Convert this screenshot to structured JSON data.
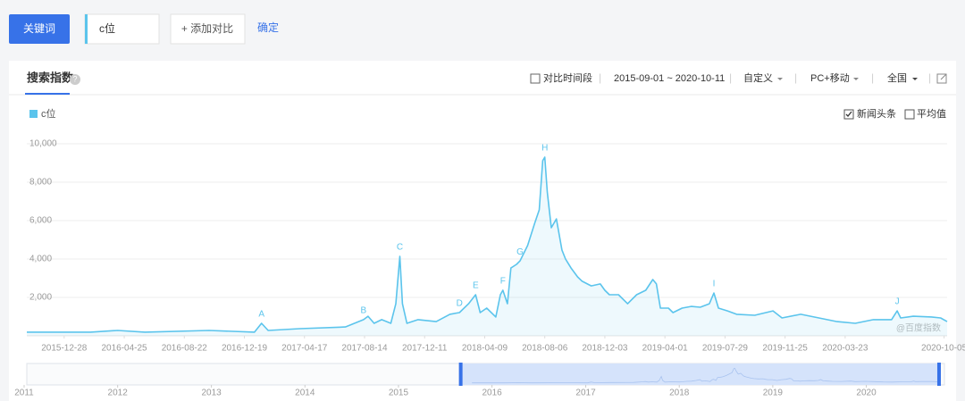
{
  "toolbar": {
    "keyword_button": "关键词",
    "keyword": "c位",
    "add_compare": "+ 添加对比",
    "confirm": "确定"
  },
  "header": {
    "title": "搜索指数",
    "compare_period": "对比时间段",
    "date_range": "2015-09-01 ~ 2020-10-11",
    "custom": "自定义",
    "device": "PC+移动",
    "region": "全国",
    "news": "新闻头条",
    "average": "平均值"
  },
  "chart_data": {
    "type": "line",
    "grid": true,
    "watermark": "@百度指数",
    "x": [
      "2015-10-15",
      "2016-02-18",
      "2016-04-12",
      "2016-06-05",
      "2016-10-10",
      "2017-01-08",
      "2017-01-22",
      "2017-02-04",
      "2017-04-08",
      "2017-07-07",
      "2017-08-12",
      "2017-08-21",
      "2017-09-02",
      "2017-09-17",
      "2017-10-05",
      "2017-10-15",
      "2017-10-23",
      "2017-10-28",
      "2017-11-06",
      "2017-11-28",
      "2018-01-03",
      "2018-01-30",
      "2018-02-18",
      "2018-03-08",
      "2018-03-22",
      "2018-03-31",
      "2018-04-13",
      "2018-05-01",
      "2018-05-10",
      "2018-05-15",
      "2018-05-24",
      "2018-05-31",
      "2018-06-11",
      "2018-06-18",
      "2018-07-03",
      "2018-07-17",
      "2018-07-26",
      "2018-08-02",
      "2018-08-06",
      "2018-08-11",
      "2018-08-19",
      "2018-08-29",
      "2018-09-09",
      "2018-09-16",
      "2018-09-27",
      "2018-10-10",
      "2018-10-19",
      "2018-11-06",
      "2018-11-24",
      "2018-12-03",
      "2018-12-12",
      "2018-12-30",
      "2019-01-17",
      "2019-02-04",
      "2019-02-22",
      "2019-03-08",
      "2019-03-15",
      "2019-03-23",
      "2019-04-08",
      "2019-04-17",
      "2019-05-05",
      "2019-05-23",
      "2019-06-10",
      "2019-06-28",
      "2019-07-07",
      "2019-07-16",
      "2019-08-03",
      "2019-08-21",
      "2019-09-26",
      "2019-11-01",
      "2019-11-19",
      "2019-12-26",
      "2020-01-31",
      "2020-03-07",
      "2020-04-12",
      "2020-05-18",
      "2020-06-23",
      "2020-07-04",
      "2020-07-11",
      "2020-08-05",
      "2020-09-10",
      "2020-09-28",
      "2020-10-11"
    ],
    "series": [
      {
        "name": "c位",
        "color": "#5bc4ec",
        "values": [
          190,
          190,
          280,
          190,
          280,
          190,
          650,
          280,
          370,
          460,
          840,
          1020,
          650,
          840,
          650,
          1670,
          4140,
          1670,
          650,
          840,
          740,
          1120,
          1210,
          1670,
          2140,
          1210,
          1440,
          980,
          2140,
          2370,
          1670,
          3530,
          3720,
          3900,
          4700,
          5860,
          6560,
          9120,
          9300,
          7490,
          5630,
          6090,
          4470,
          4000,
          3530,
          3070,
          2840,
          2600,
          2700,
          2370,
          2140,
          2140,
          1670,
          2140,
          2370,
          2930,
          2700,
          1440,
          1440,
          1210,
          1440,
          1530,
          1490,
          1670,
          2230,
          1440,
          1300,
          1120,
          1070,
          1300,
          930,
          1120,
          930,
          740,
          650,
          840,
          840,
          1300,
          930,
          1020,
          980,
          930,
          740
        ]
      }
    ],
    "xlim": [
      "2015-10-15",
      "2020-10-11"
    ],
    "xticks": [
      "2015-12-28",
      "2016-04-25",
      "2016-08-22",
      "2016-12-19",
      "2017-04-17",
      "2017-08-14",
      "2017-12-11",
      "2018-04-09",
      "2018-08-06",
      "2018-12-03",
      "2019-04-01",
      "2019-07-29",
      "2019-11-25",
      "2020-03-23",
      "2020-10-05"
    ],
    "ylim": [
      0,
      10000
    ],
    "yticks": [
      {
        "value": 2000,
        "label": "2,000"
      },
      {
        "value": 4000,
        "label": "4,000"
      },
      {
        "value": 6000,
        "label": "6,000"
      },
      {
        "value": 8000,
        "label": "8,000"
      },
      {
        "value": 10000,
        "label": "10,000"
      }
    ],
    "annotations": [
      {
        "text": "A",
        "x": "2017-01-22",
        "y": 650
      },
      {
        "text": "B",
        "x": "2017-08-12",
        "y": 840
      },
      {
        "text": "C",
        "x": "2017-10-23",
        "y": 4140
      },
      {
        "text": "D",
        "x": "2018-02-18",
        "y": 1210
      },
      {
        "text": "E",
        "x": "2018-03-22",
        "y": 2140
      },
      {
        "text": "F",
        "x": "2018-05-15",
        "y": 2370
      },
      {
        "text": "G",
        "x": "2018-06-18",
        "y": 3900
      },
      {
        "text": "H",
        "x": "2018-08-06",
        "y": 9300
      },
      {
        "text": "I",
        "x": "2019-07-07",
        "y": 2230
      },
      {
        "text": "J",
        "x": "2020-07-04",
        "y": 1300
      }
    ]
  },
  "navigator": {
    "xlim": [
      "2011-01-01",
      "2020-11-01"
    ],
    "xticks": [
      "2011",
      "2012",
      "2013",
      "2014",
      "2015",
      "2016",
      "2017",
      "2018",
      "2019",
      "2020"
    ],
    "selection": [
      "2015-09-01",
      "2020-10-11"
    ]
  }
}
